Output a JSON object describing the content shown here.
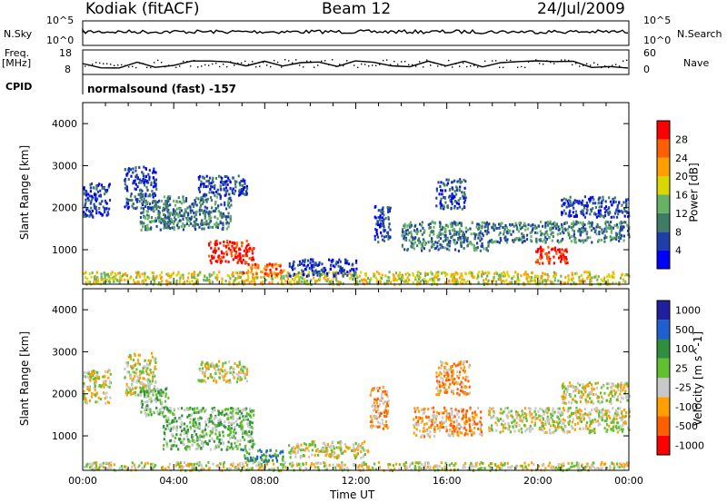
{
  "header": {
    "station": "Kodiak (fitACF)",
    "beam": "Beam 12",
    "date": "24/Jul/2009"
  },
  "status_panel": {
    "nsky_label": "N.Sky",
    "nsky_ticks": [
      "10^5",
      "10^0"
    ],
    "nsearch_label": "N.Search",
    "nsearch_ticks": [
      "10^5",
      "10^0"
    ],
    "freq_label": "Freq.",
    "freq_unit": "[MHz]",
    "freq_ticks": [
      "18",
      "8"
    ],
    "nave_label": "Nave",
    "nave_ticks": [
      "60",
      "0"
    ],
    "cpid_label": "CPID",
    "cpid_value": "normalsound (fast) -157"
  },
  "colors": {
    "power": [
      "#0000ff",
      "#1f3fa8",
      "#3f7c66",
      "#66b366",
      "#d8d800",
      "#ff9f00",
      "#ff5f00",
      "#ff0000"
    ],
    "velocity": [
      "#1f1fa0",
      "#1f5fcf",
      "#2f8f3f",
      "#60c030",
      "#c8c8c8",
      "#ff9f00",
      "#ff5f00",
      "#ff0000"
    ]
  },
  "chart_data": [
    {
      "type": "heatmap",
      "title": "Power",
      "ylabel": "Slant Range [km]",
      "xlabel": "",
      "y_ticks": [
        "1000",
        "2000",
        "3000",
        "4000"
      ],
      "ylim": [
        180,
        4500
      ],
      "xlim_hours": [
        0,
        24
      ],
      "colorbar_label": "Power [dB]",
      "colorbar_ticks": [
        "4",
        "8",
        "12",
        "16",
        "20",
        "24",
        "28"
      ],
      "echo_regions": [
        {
          "t": [
            0.0,
            24.0
          ],
          "r": [
            200,
            500
          ],
          "level": 4
        },
        {
          "t": [
            0.0,
            1.2
          ],
          "r": [
            1800,
            2600
          ],
          "level": 1
        },
        {
          "t": [
            1.8,
            3.2
          ],
          "r": [
            2000,
            3000
          ],
          "level": 1
        },
        {
          "t": [
            2.5,
            3.8
          ],
          "r": [
            1500,
            2200
          ],
          "level": 2
        },
        {
          "t": [
            3.5,
            6.5
          ],
          "r": [
            1500,
            2300
          ],
          "level": 2
        },
        {
          "t": [
            5.0,
            7.2
          ],
          "r": [
            2300,
            2800
          ],
          "level": 1
        },
        {
          "t": [
            5.5,
            7.5
          ],
          "r": [
            700,
            1250
          ],
          "level": 7
        },
        {
          "t": [
            7.0,
            8.8
          ],
          "r": [
            400,
            700
          ],
          "level": 6
        },
        {
          "t": [
            9.0,
            12.0
          ],
          "r": [
            400,
            800
          ],
          "level": 1
        },
        {
          "t": [
            12.8,
            13.5
          ],
          "r": [
            1200,
            2100
          ],
          "level": 1
        },
        {
          "t": [
            14.0,
            17.8
          ],
          "r": [
            1000,
            1700
          ],
          "level": 2
        },
        {
          "t": [
            15.5,
            16.8
          ],
          "r": [
            2000,
            2700
          ],
          "level": 1
        },
        {
          "t": [
            17.8,
            24.0
          ],
          "r": [
            1200,
            1700
          ],
          "level": 2
        },
        {
          "t": [
            19.8,
            21.3
          ],
          "r": [
            700,
            1100
          ],
          "level": 7
        },
        {
          "t": [
            21.0,
            24.0
          ],
          "r": [
            1800,
            2300
          ],
          "level": 1
        }
      ]
    },
    {
      "type": "heatmap",
      "title": "Velocity",
      "ylabel": "Slant Range [km]",
      "xlabel": "Time UT",
      "x_ticks": [
        "00:00",
        "04:00",
        "08:00",
        "12:00",
        "16:00",
        "20:00",
        "00:00"
      ],
      "y_ticks": [
        "1000",
        "2000",
        "3000",
        "4000"
      ],
      "ylim": [
        180,
        4500
      ],
      "xlim_hours": [
        0,
        24
      ],
      "colorbar_label": "Velocity [m s^-1]",
      "colorbar_ticks": [
        "1000",
        "500",
        "100",
        "25",
        "-25",
        "-100",
        "-500",
        "-1000"
      ],
      "echo_regions": [
        {
          "t": [
            0.0,
            24.0
          ],
          "r": [
            200,
            400
          ],
          "level": 4
        },
        {
          "t": [
            0.0,
            1.2
          ],
          "r": [
            1800,
            2600
          ],
          "level": 4
        },
        {
          "t": [
            1.8,
            3.2
          ],
          "r": [
            2000,
            3000
          ],
          "level": 4
        },
        {
          "t": [
            2.5,
            3.8
          ],
          "r": [
            1500,
            2200
          ],
          "level": 3
        },
        {
          "t": [
            3.5,
            7.5
          ],
          "r": [
            700,
            1700
          ],
          "level": 3
        },
        {
          "t": [
            5.0,
            7.2
          ],
          "r": [
            2300,
            2800
          ],
          "level": 4
        },
        {
          "t": [
            7.0,
            8.8
          ],
          "r": [
            400,
            700
          ],
          "level": 2
        },
        {
          "t": [
            9.0,
            12.5
          ],
          "r": [
            500,
            900
          ],
          "level": 4
        },
        {
          "t": [
            12.6,
            13.4
          ],
          "r": [
            1200,
            2200
          ],
          "level": 5
        },
        {
          "t": [
            14.5,
            17.5
          ],
          "r": [
            1000,
            1700
          ],
          "level": 5
        },
        {
          "t": [
            15.5,
            17.0
          ],
          "r": [
            2000,
            2800
          ],
          "level": 5
        },
        {
          "t": [
            17.8,
            24.0
          ],
          "r": [
            1100,
            1700
          ],
          "level": 4
        },
        {
          "t": [
            21.0,
            24.0
          ],
          "r": [
            1800,
            2300
          ],
          "level": 4
        }
      ]
    }
  ]
}
